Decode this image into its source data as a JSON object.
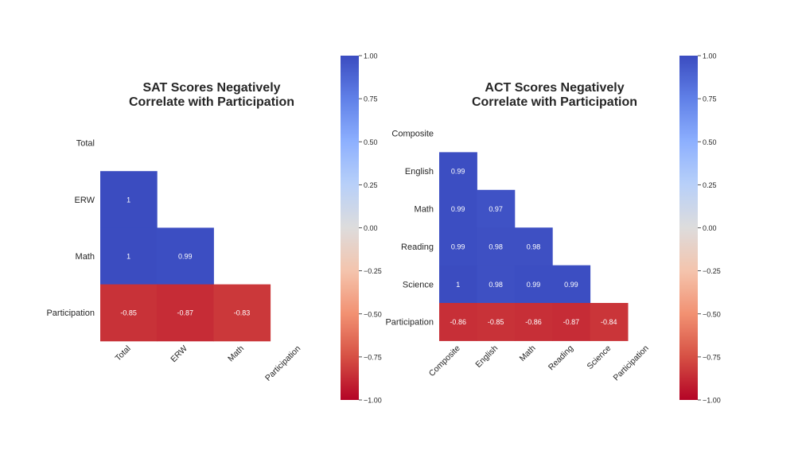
{
  "chart_data": [
    {
      "type": "heatmap",
      "title": "SAT Scores Negatively\nCorrelate with Participation",
      "row_labels": [
        "Total",
        "ERW",
        "Math",
        "Participation"
      ],
      "col_labels": [
        "Total",
        "ERW",
        "Math",
        "Participation"
      ],
      "values": [
        [
          null,
          null,
          null,
          null
        ],
        [
          1,
          null,
          null,
          null
        ],
        [
          1,
          0.99,
          null,
          null
        ],
        [
          -0.85,
          -0.87,
          -0.83,
          null
        ]
      ],
      "mask": "upper-triangle-including-diagonal",
      "colormap": "coolwarm_r",
      "vmin": -1,
      "vmax": 1,
      "colorbar_ticks": [
        "1.00",
        "0.75",
        "0.50",
        "0.25",
        "0.00",
        "−0.25",
        "−0.50",
        "−0.75",
        "−1.00"
      ],
      "annotate": true
    },
    {
      "type": "heatmap",
      "title": "ACT Scores Negatively\nCorrelate with Participation",
      "row_labels": [
        "Composite",
        "English",
        "Math",
        "Reading",
        "Science",
        "Participation"
      ],
      "col_labels": [
        "Composite",
        "English",
        "Math",
        "Reading",
        "Science",
        "Participation"
      ],
      "values": [
        [
          null,
          null,
          null,
          null,
          null,
          null
        ],
        [
          0.99,
          null,
          null,
          null,
          null,
          null
        ],
        [
          0.99,
          0.97,
          null,
          null,
          null,
          null
        ],
        [
          0.99,
          0.98,
          0.98,
          null,
          null,
          null
        ],
        [
          1,
          0.98,
          0.99,
          0.99,
          null,
          null
        ],
        [
          -0.86,
          -0.85,
          -0.86,
          -0.87,
          -0.84,
          null
        ]
      ],
      "mask": "upper-triangle-including-diagonal",
      "colormap": "coolwarm_r",
      "vmin": -1,
      "vmax": 1,
      "colorbar_ticks": [
        "1.00",
        "0.75",
        "0.50",
        "0.25",
        "0.00",
        "−0.25",
        "−0.50",
        "−0.75",
        "−1.00"
      ],
      "annotate": true
    }
  ]
}
